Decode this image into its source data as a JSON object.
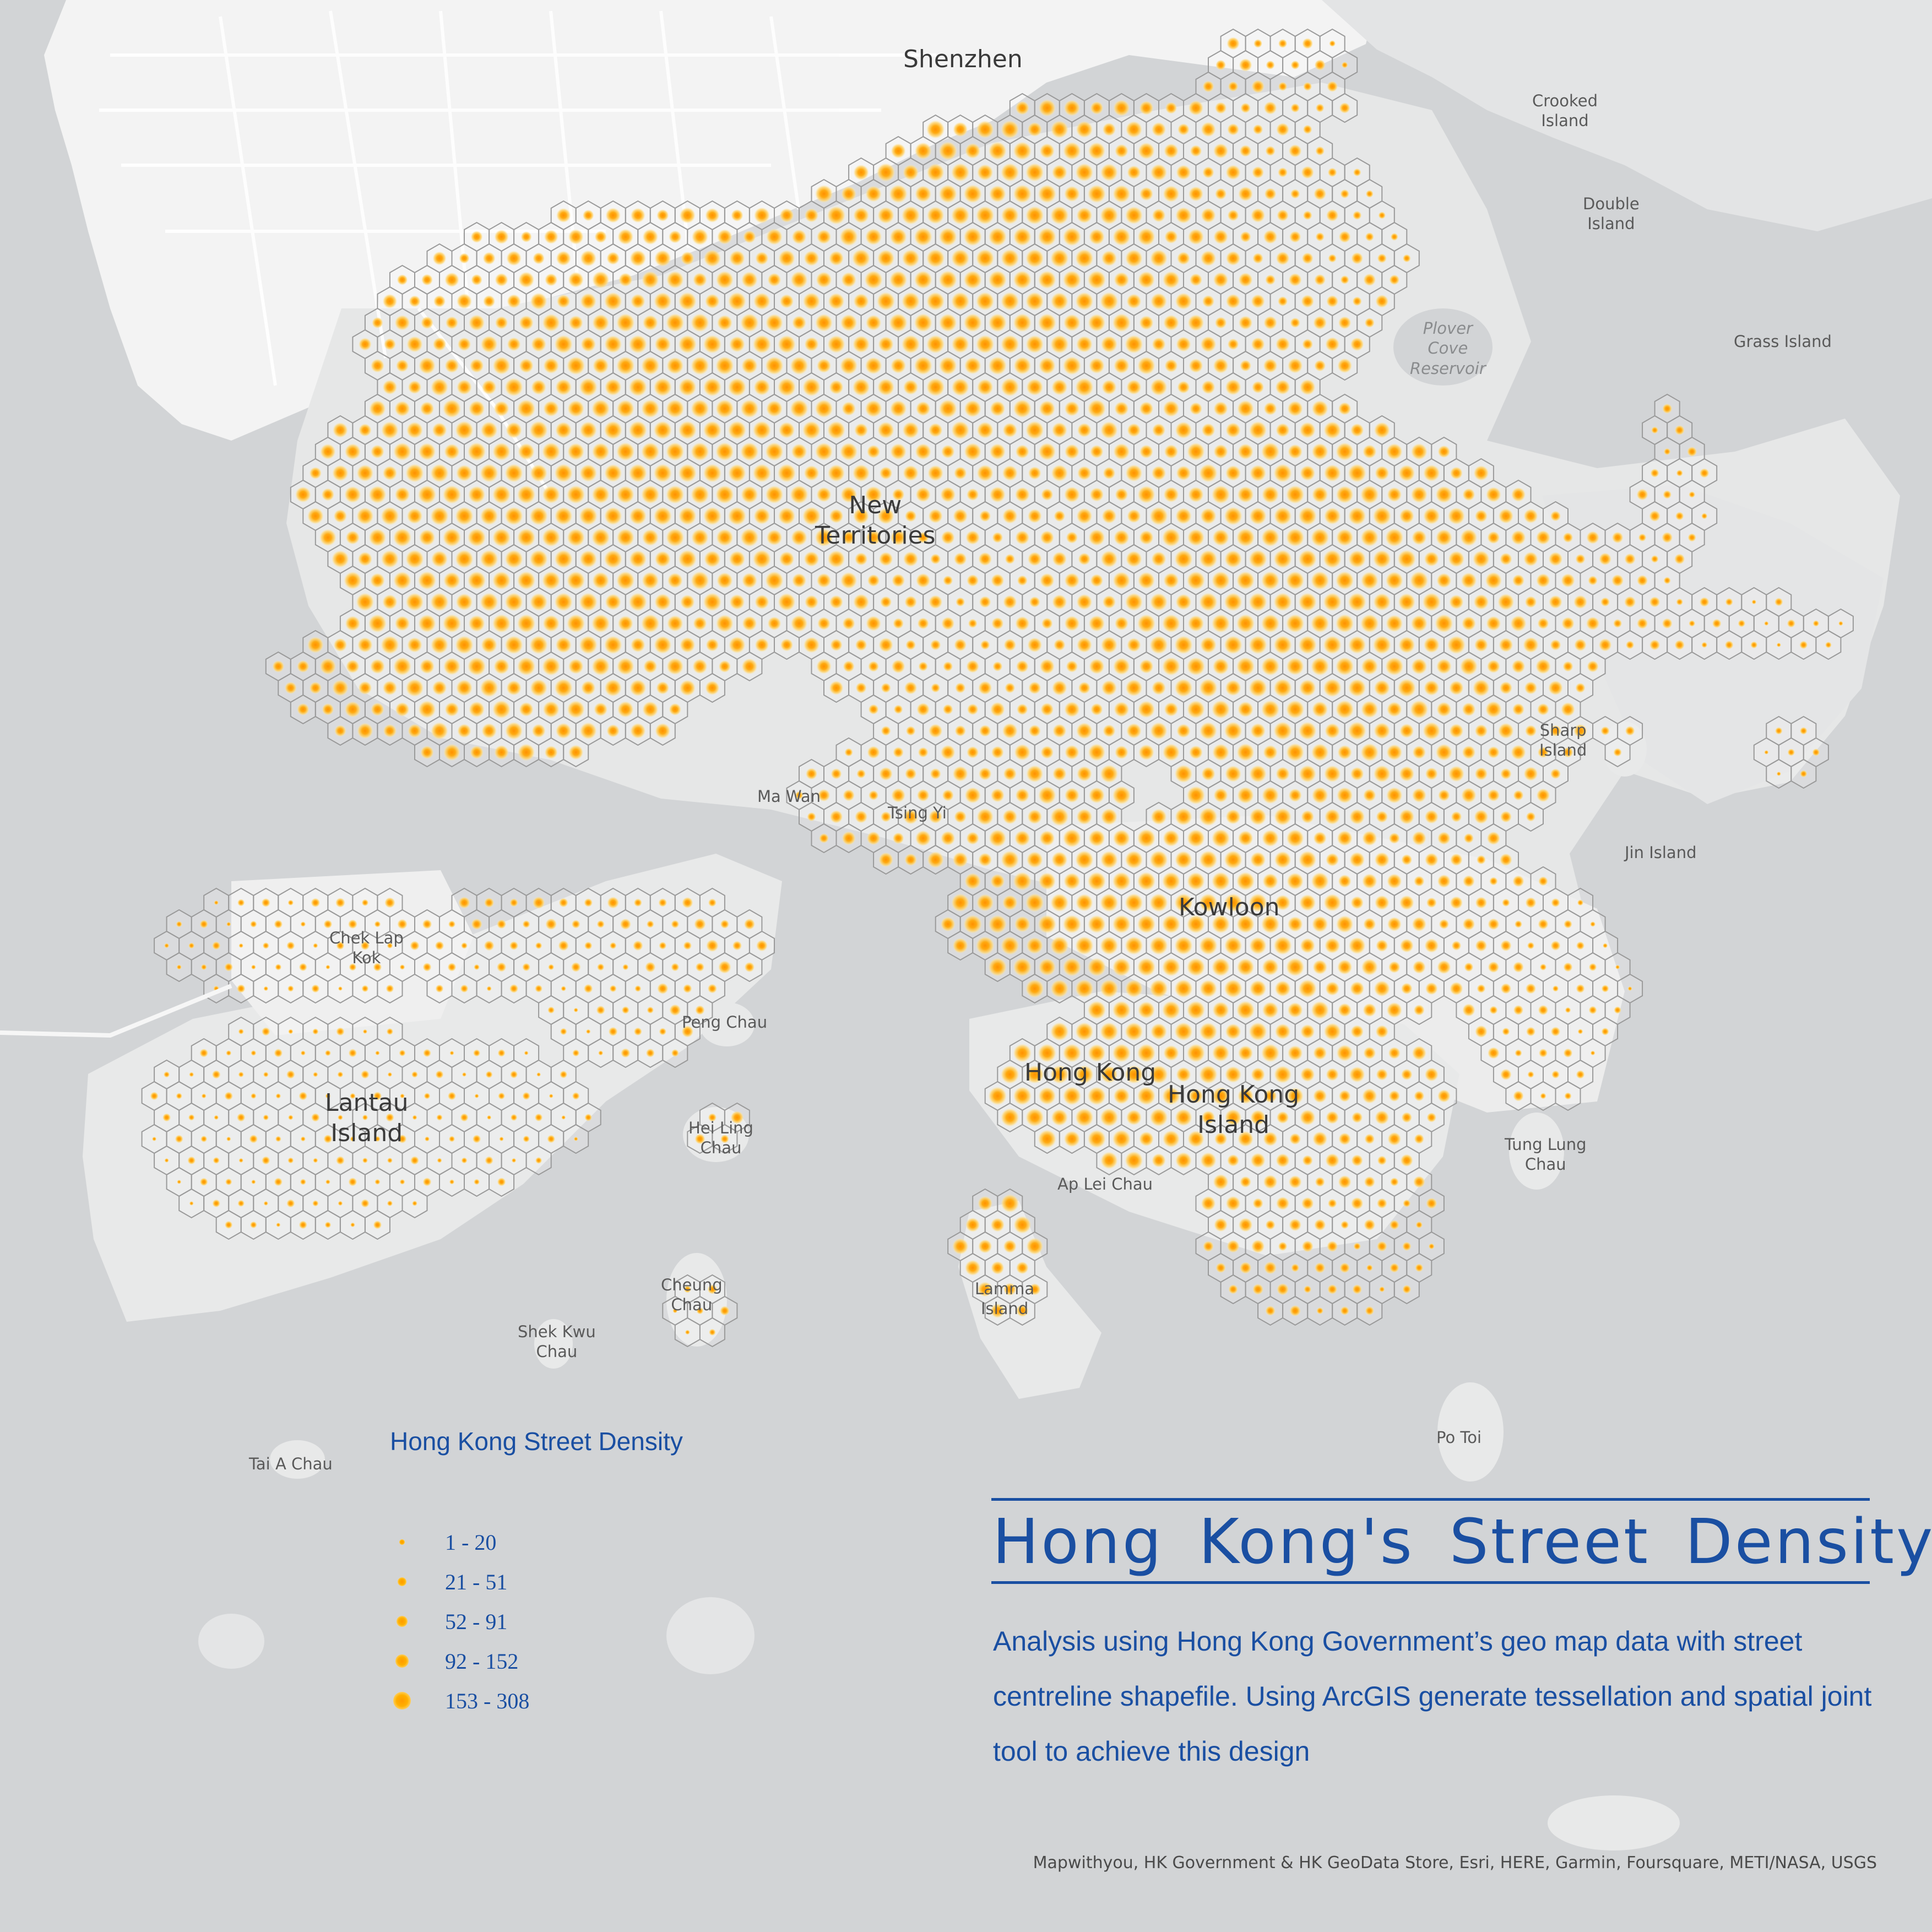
{
  "map": {
    "places": {
      "shenzhen": "Shenzhen",
      "new_territories": "New\nTerritories",
      "kowloon": "Kowloon",
      "hong_kong": "Hong Kong",
      "hong_kong_island": "Hong Kong\nIsland",
      "lantau_island": "Lantau\nIsland",
      "chek_lap_kok": "Chek Lap\nKok",
      "ma_wan": "Ma Wan",
      "tsing_yi": "Tsing Yi",
      "peng_chau": "Peng Chau",
      "hei_ling_chau": "Hei Ling\nChau",
      "cheung_chau": "Cheung\nChau",
      "shek_kwu_chau": "Shek Kwu\nChau",
      "tai_a_chau": "Tai A Chau",
      "lamma_island": "Lamma\nIsland",
      "ap_lei_chau": "Ap Lei Chau",
      "po_toi": "Po Toi",
      "tung_lung_chau": "Tung Lung\nChau",
      "sharp_island": "Sharp\nIsland",
      "jin_island": "Jin Island",
      "grass_island": "Grass Island",
      "plover_cove_reservoir": "Plover\nCove\nReservoir",
      "crooked_island": "Crooked\nIsland",
      "double_island": "Double\nIsland"
    },
    "colors": {
      "sea": "#d2d4d6",
      "land": "#e7e8e8",
      "urban": "#f4f4f4",
      "hex_stroke": "#9a9a9a",
      "dot_core": "#ff9a00",
      "dot_halo": "#ffd36a",
      "accent": "#1a4fa2"
    }
  },
  "legend": {
    "title": "Hong Kong Street Density",
    "classes": [
      {
        "label": "1 - 20",
        "min": 1,
        "max": 20
      },
      {
        "label": "21 - 51",
        "min": 21,
        "max": 51
      },
      {
        "label": "52 - 91",
        "min": 52,
        "max": 91
      },
      {
        "label": "92 - 152",
        "min": 92,
        "max": 152
      },
      {
        "label": "153 - 308",
        "min": 153,
        "max": 308
      }
    ]
  },
  "title": "Hong Kong's Street Density",
  "description": "Analysis using Hong Kong Government’s geo map data with street centreline shapefile. Using ArcGIS generate tessellation and spatial joint tool to achieve  this design",
  "credits": "Mapwithyou, HK Government & HK GeoData Store, Esri, HERE, Garmin, Foursquare, METI/NASA, USGS"
}
